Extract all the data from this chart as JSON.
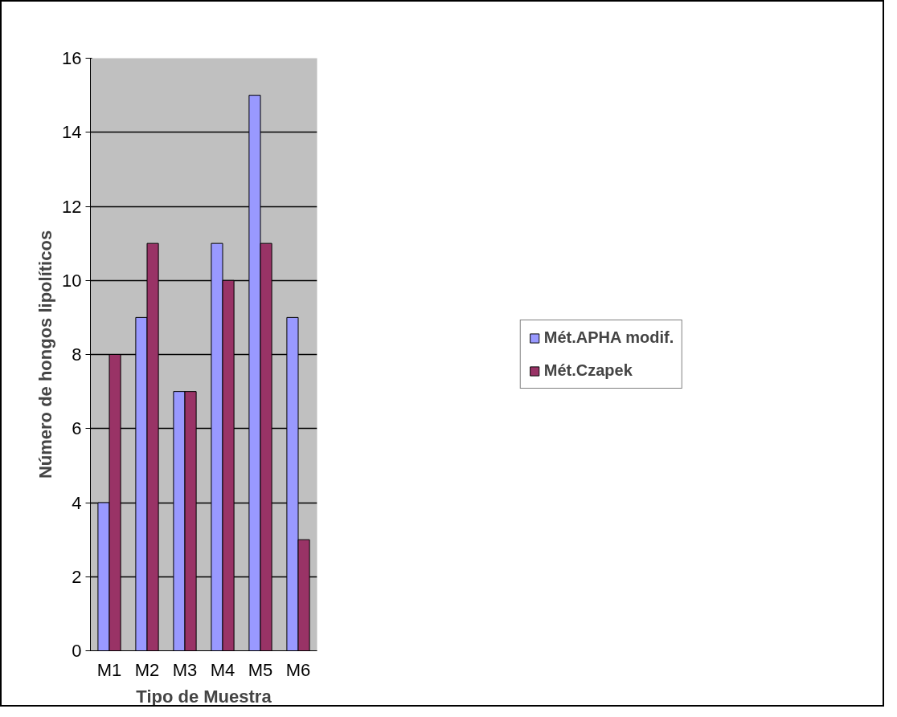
{
  "chart_data": {
    "type": "bar",
    "xlabel": "Tipo de Muestra",
    "ylabel": "Número de hongos lipolíticos",
    "categories": [
      "M1",
      "M2",
      "M3",
      "M4",
      "M5",
      "M6"
    ],
    "series": [
      {
        "name": "Mét.APHA modif.",
        "color": "#9999ff",
        "values": [
          4,
          9,
          7,
          11,
          15,
          9
        ]
      },
      {
        "name": "Mét.Czapek",
        "color": "#993366",
        "values": [
          8,
          11,
          7,
          10,
          11,
          3
        ]
      }
    ],
    "ylim": [
      0,
      16
    ],
    "yticks": [
      0,
      2,
      4,
      6,
      8,
      10,
      12,
      14,
      16
    ],
    "grid": "y",
    "legend": "right"
  }
}
